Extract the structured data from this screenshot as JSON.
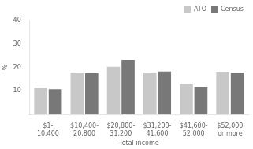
{
  "chart_data": {
    "type": "bar",
    "categories": [
      "$1-\n10,400",
      "$10,400-\n20,800",
      "$20,800-\n31,200",
      "$31,200-\n41,600",
      "$41,600-\n52,000",
      "$52,000\nor more"
    ],
    "series": [
      {
        "name": "ATO",
        "color": "#c8c8c8",
        "values": [
          11.5,
          17.8,
          20.3,
          17.8,
          13.0,
          18.2
        ]
      },
      {
        "name": "Census",
        "color": "#787878",
        "values": [
          10.7,
          17.5,
          23.2,
          18.3,
          11.8,
          17.8
        ]
      }
    ],
    "xlabel": "Total income",
    "ylabel": "%",
    "ylim": [
      0,
      40
    ],
    "yticks": [
      10,
      20,
      30,
      40
    ],
    "grid": false,
    "legend": "upper right"
  }
}
